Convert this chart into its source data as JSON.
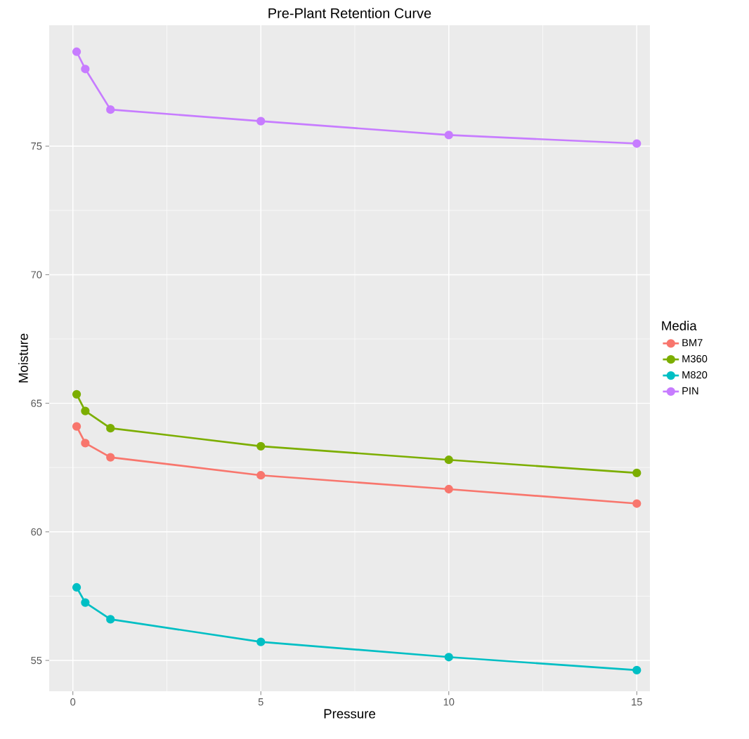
{
  "chart_data": {
    "type": "line",
    "title": "Pre-Plant Retention Curve",
    "xlabel": "Pressure",
    "ylabel": "Moisture",
    "legend_title": "Media",
    "x": [
      0.1,
      0.33,
      1,
      5,
      10,
      15
    ],
    "series": [
      {
        "name": "BM7",
        "color": "#f8766d",
        "values": [
          64.1,
          63.45,
          62.9,
          62.2,
          61.66,
          61.1
        ]
      },
      {
        "name": "M360",
        "color": "#7cae00",
        "values": [
          65.35,
          64.7,
          64.03,
          63.33,
          62.8,
          62.29
        ]
      },
      {
        "name": "M820",
        "color": "#00bfc4",
        "values": [
          57.84,
          57.25,
          56.6,
          55.72,
          55.13,
          54.62
        ]
      },
      {
        "name": "PIN",
        "color": "#c77cff",
        "values": [
          78.67,
          78.0,
          76.42,
          75.97,
          75.43,
          75.1
        ]
      }
    ],
    "xlim": [
      -0.63,
      15.35
    ],
    "ylim": [
      53.8,
      79.7
    ],
    "xticks": [
      0,
      5,
      10,
      15
    ],
    "yticks": [
      55,
      60,
      65,
      70,
      75
    ],
    "grid": true,
    "legend": "right",
    "marker": "circle",
    "line_style": "solid"
  }
}
